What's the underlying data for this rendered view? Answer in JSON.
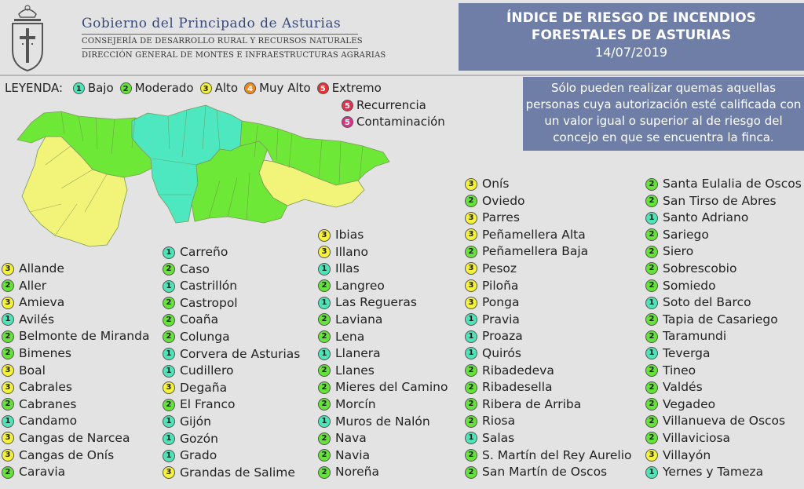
{
  "header": {
    "gov_title": "Gobierno del Principado de Asturias",
    "sub1": "CONSEJERÍA DE DESARROLLO RURAL Y RECURSOS NATURALES",
    "sub2": "DIRECCIÓN GENERAL DE MONTES E INFRAESTRUCTURAS AGRARIAS",
    "title_line1": "ÍNDICE DE RIESGO DE INCENDIOS",
    "title_line2": "FORESTALES DE ASTURIAS",
    "date": "14/07/2019"
  },
  "legend": {
    "label": "LEYENDA:",
    "items": [
      {
        "num": "1",
        "name": "Bajo",
        "color": "#4fe3b8"
      },
      {
        "num": "2",
        "name": "Moderado",
        "color": "#66e33a"
      },
      {
        "num": "3",
        "name": "Alto",
        "color": "#f4f23a"
      },
      {
        "num": "4",
        "name": "Muy Alto",
        "color": "#f08a1e"
      },
      {
        "num": "5",
        "name": "Extremo",
        "color": "#e63232"
      },
      {
        "num": "5",
        "name": "Recurrencia",
        "color": "#e0304e"
      },
      {
        "num": "5",
        "name": "Contaminación",
        "color": "#e0308a"
      }
    ]
  },
  "info": "Sólo pueden realizar quemas aquellas personas cuya autorización esté calificada con un valor igual o superior al de riesgo del concejo en que se encuentra la finca.",
  "colors": {
    "1": "#4fe3b8",
    "2": "#66e33a",
    "3": "#f4f23a",
    "map1": "#4ee8c0",
    "map2": "#6ee836",
    "map3": "#f2f47a"
  },
  "columns": [
    [
      [
        "3",
        "Allande"
      ],
      [
        "2",
        "Aller"
      ],
      [
        "3",
        "Amieva"
      ],
      [
        "1",
        "Avilés"
      ],
      [
        "2",
        "Belmonte de Miranda"
      ],
      [
        "2",
        "Bimenes"
      ],
      [
        "3",
        "Boal"
      ],
      [
        "3",
        "Cabrales"
      ],
      [
        "2",
        "Cabranes"
      ],
      [
        "1",
        "Candamo"
      ],
      [
        "3",
        "Cangas de Narcea"
      ],
      [
        "3",
        "Cangas de Onís"
      ],
      [
        "2",
        "Caravia"
      ]
    ],
    [
      [
        "1",
        "Carreño"
      ],
      [
        "2",
        "Caso"
      ],
      [
        "1",
        "Castrillón"
      ],
      [
        "2",
        "Castropol"
      ],
      [
        "2",
        "Coaña"
      ],
      [
        "2",
        "Colunga"
      ],
      [
        "1",
        "Corvera de Asturias"
      ],
      [
        "1",
        "Cudillero"
      ],
      [
        "3",
        "Degaña"
      ],
      [
        "2",
        "El Franco"
      ],
      [
        "1",
        "Gijón"
      ],
      [
        "1",
        "Gozón"
      ],
      [
        "1",
        "Grado"
      ],
      [
        "3",
        "Grandas de Salime"
      ]
    ],
    [
      [
        "3",
        "Ibias"
      ],
      [
        "3",
        "Illano"
      ],
      [
        "1",
        "Illas"
      ],
      [
        "2",
        "Langreo"
      ],
      [
        "1",
        "Las Regueras"
      ],
      [
        "2",
        "Laviana"
      ],
      [
        "2",
        "Lena"
      ],
      [
        "1",
        "Llanera"
      ],
      [
        "2",
        "Llanes"
      ],
      [
        "2",
        "Mieres del Camino"
      ],
      [
        "2",
        "Morcín"
      ],
      [
        "1",
        "Muros de Nalón"
      ],
      [
        "2",
        "Nava"
      ],
      [
        "2",
        "Navia"
      ],
      [
        "2",
        "Noreña"
      ]
    ],
    [
      [
        "3",
        "Onís"
      ],
      [
        "2",
        "Oviedo"
      ],
      [
        "3",
        "Parres"
      ],
      [
        "3",
        "Peñamellera Alta"
      ],
      [
        "2",
        "Peñamellera Baja"
      ],
      [
        "3",
        "Pesoz"
      ],
      [
        "3",
        "Piloña"
      ],
      [
        "3",
        "Ponga"
      ],
      [
        "1",
        "Pravia"
      ],
      [
        "1",
        "Proaza"
      ],
      [
        "1",
        "Quirós"
      ],
      [
        "2",
        "Ribadedeva"
      ],
      [
        "2",
        "Ribadesella"
      ],
      [
        "2",
        "Ribera de Arriba"
      ],
      [
        "2",
        "Riosa"
      ],
      [
        "1",
        "Salas"
      ],
      [
        "2",
        "S. Martín del Rey Aurelio"
      ],
      [
        "2",
        "San Martín de Oscos"
      ]
    ],
    [
      [
        "2",
        "Santa Eulalia de Oscos"
      ],
      [
        "2",
        "San Tirso de Abres"
      ],
      [
        "1",
        "Santo Adriano"
      ],
      [
        "2",
        "Sariego"
      ],
      [
        "2",
        "Siero"
      ],
      [
        "2",
        "Sobrescobio"
      ],
      [
        "2",
        "Somiedo"
      ],
      [
        "1",
        "Soto del Barco"
      ],
      [
        "2",
        "Tapia de Casariego"
      ],
      [
        "2",
        "Taramundi"
      ],
      [
        "1",
        "Teverga"
      ],
      [
        "2",
        "Tineo"
      ],
      [
        "2",
        "Valdés"
      ],
      [
        "2",
        "Vegadeo"
      ],
      [
        "2",
        "Villanueva de Oscos"
      ],
      [
        "2",
        "Villaviciosa"
      ],
      [
        "3",
        "Villayón"
      ],
      [
        "1",
        "Yernes y Tameza"
      ]
    ]
  ]
}
